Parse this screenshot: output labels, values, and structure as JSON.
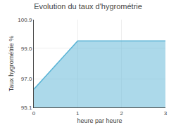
{
  "chart_data": {
    "type": "area",
    "title": "Evolution du taux d'hygrométrie",
    "xlabel": "heure par heure",
    "ylabel": "Taux hygrométrie %",
    "x": [
      0,
      1,
      3
    ],
    "values": [
      96.3,
      99.5,
      99.5
    ],
    "color": "#5ab4d6",
    "xlim": [
      0,
      3
    ],
    "ylim": [
      95.1,
      100.9
    ],
    "xticks": [
      0,
      1,
      2,
      3
    ],
    "yticks": [
      95.1,
      {
        "value": 97.0,
        "label": "97.0"
      },
      {
        "value": 99.0,
        "label": "99.0"
      },
      100.9
    ],
    "grid": true
  }
}
